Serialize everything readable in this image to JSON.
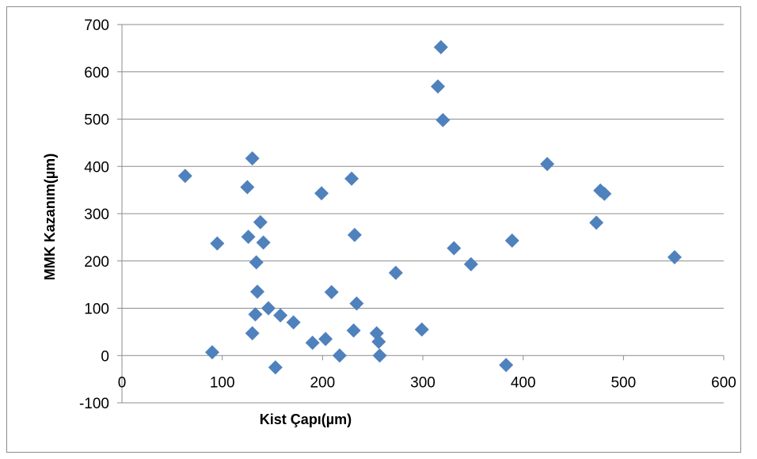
{
  "chart_data": {
    "type": "scatter",
    "title": "",
    "xlabel": "Kist Çapı(µm)",
    "ylabel": "MMK Kazanım(µm)",
    "xlim": [
      0,
      600
    ],
    "ylim": [
      -100,
      700
    ],
    "x_ticks": [
      0,
      100,
      200,
      300,
      400,
      500,
      600
    ],
    "y_ticks": [
      -100,
      0,
      100,
      200,
      300,
      400,
      500,
      600,
      700
    ],
    "grid": "horizontal major gridlines",
    "legend": "none",
    "marker": "diamond",
    "marker_color": "#4f81bd",
    "series": [
      {
        "points": [
          [
            63,
            380
          ],
          [
            90,
            7
          ],
          [
            95,
            237
          ],
          [
            125,
            356
          ],
          [
            126,
            251
          ],
          [
            130,
            417
          ],
          [
            130,
            47
          ],
          [
            133,
            87
          ],
          [
            134,
            197
          ],
          [
            135,
            135
          ],
          [
            138,
            282
          ],
          [
            141,
            239
          ],
          [
            146,
            100
          ],
          [
            153,
            -25
          ],
          [
            158,
            85
          ],
          [
            171,
            70
          ],
          [
            190,
            27
          ],
          [
            199,
            343
          ],
          [
            203,
            35
          ],
          [
            209,
            134
          ],
          [
            217,
            0
          ],
          [
            229,
            374
          ],
          [
            231,
            53
          ],
          [
            232,
            255
          ],
          [
            234,
            110
          ],
          [
            254,
            47
          ],
          [
            256,
            29
          ],
          [
            257,
            0
          ],
          [
            273,
            175
          ],
          [
            299,
            55
          ],
          [
            315,
            569
          ],
          [
            318,
            652
          ],
          [
            320,
            498
          ],
          [
            331,
            227
          ],
          [
            348,
            193
          ],
          [
            383,
            -20
          ],
          [
            389,
            243
          ],
          [
            424,
            405
          ],
          [
            473,
            281
          ],
          [
            477,
            349
          ],
          [
            481,
            342
          ],
          [
            551,
            208
          ]
        ]
      }
    ]
  }
}
